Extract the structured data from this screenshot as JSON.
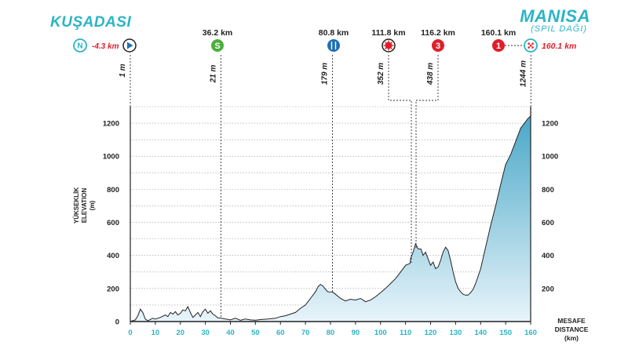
{
  "start_city": "KUŞADASI",
  "finish_city": "MANISA",
  "finish_sub": "(SPIL DAĞI)",
  "colors": {
    "accent": "#2bb5c6",
    "fill_top": "#4aa8c8",
    "fill_bottom": "#e8f4fa",
    "green": "#4caf3a",
    "blue": "#1f6fb5",
    "red": "#e01e2a",
    "line": "#222222"
  },
  "chart_data": {
    "type": "area",
    "title": "",
    "xlabel": "MESAFE DISTANCE (km)",
    "xlabel_lines": [
      "MESAFE",
      "DISTANCE",
      "(km)"
    ],
    "ylabel_lines": [
      "YÜKSEKLİK",
      "ELEVATION",
      "(m)"
    ],
    "xlim": [
      0,
      160
    ],
    "ylim": [
      0,
      1300
    ],
    "x_ticks": [
      0,
      10,
      20,
      30,
      40,
      50,
      60,
      70,
      80,
      90,
      100,
      110,
      120,
      130,
      140,
      150,
      160
    ],
    "y_ticks": [
      0,
      200,
      400,
      600,
      800,
      1000,
      1200
    ],
    "profile": [
      [
        0,
        1
      ],
      [
        2,
        10
      ],
      [
        3,
        35
      ],
      [
        4,
        75
      ],
      [
        5,
        55
      ],
      [
        6,
        15
      ],
      [
        7,
        5
      ],
      [
        9,
        20
      ],
      [
        10,
        15
      ],
      [
        12,
        25
      ],
      [
        14,
        40
      ],
      [
        15,
        30
      ],
      [
        16,
        55
      ],
      [
        17,
        45
      ],
      [
        18,
        60
      ],
      [
        19,
        40
      ],
      [
        20,
        50
      ],
      [
        21,
        70
      ],
      [
        22,
        65
      ],
      [
        23,
        90
      ],
      [
        24,
        55
      ],
      [
        25,
        25
      ],
      [
        26,
        40
      ],
      [
        27,
        55
      ],
      [
        28,
        30
      ],
      [
        29,
        60
      ],
      [
        30,
        75
      ],
      [
        31,
        50
      ],
      [
        32,
        65
      ],
      [
        33,
        45
      ],
      [
        34,
        35
      ],
      [
        35,
        22
      ],
      [
        36.2,
        21
      ],
      [
        38,
        15
      ],
      [
        40,
        10
      ],
      [
        42,
        20
      ],
      [
        44,
        8
      ],
      [
        46,
        15
      ],
      [
        48,
        10
      ],
      [
        50,
        8
      ],
      [
        52,
        12
      ],
      [
        55,
        15
      ],
      [
        58,
        20
      ],
      [
        60,
        30
      ],
      [
        62,
        35
      ],
      [
        64,
        45
      ],
      [
        66,
        55
      ],
      [
        68,
        80
      ],
      [
        70,
        100
      ],
      [
        72,
        140
      ],
      [
        74,
        180
      ],
      [
        75,
        210
      ],
      [
        76,
        225
      ],
      [
        77,
        215
      ],
      [
        78,
        195
      ],
      [
        79,
        180
      ],
      [
        80.8,
        179
      ],
      [
        82,
        165
      ],
      [
        84,
        140
      ],
      [
        86,
        125
      ],
      [
        88,
        135
      ],
      [
        90,
        130
      ],
      [
        92,
        140
      ],
      [
        94,
        120
      ],
      [
        96,
        130
      ],
      [
        98,
        150
      ],
      [
        100,
        175
      ],
      [
        102,
        200
      ],
      [
        104,
        230
      ],
      [
        106,
        260
      ],
      [
        108,
        300
      ],
      [
        110,
        340
      ],
      [
        111.8,
        352
      ],
      [
        112,
        380
      ],
      [
        113,
        420
      ],
      [
        114,
        470
      ],
      [
        115,
        440
      ],
      [
        116.2,
        438
      ],
      [
        117,
        400
      ],
      [
        118,
        420
      ],
      [
        119,
        380
      ],
      [
        120,
        340
      ],
      [
        121,
        360
      ],
      [
        122,
        320
      ],
      [
        123,
        330
      ],
      [
        124,
        370
      ],
      [
        125,
        420
      ],
      [
        126,
        450
      ],
      [
        127,
        430
      ],
      [
        128,
        370
      ],
      [
        129,
        300
      ],
      [
        130,
        240
      ],
      [
        131,
        200
      ],
      [
        132,
        180
      ],
      [
        133,
        165
      ],
      [
        134,
        160
      ],
      [
        135,
        160
      ],
      [
        136,
        175
      ],
      [
        137,
        195
      ],
      [
        138,
        230
      ],
      [
        140,
        320
      ],
      [
        142,
        450
      ],
      [
        144,
        580
      ],
      [
        146,
        700
      ],
      [
        148,
        830
      ],
      [
        150,
        950
      ],
      [
        152,
        1010
      ],
      [
        154,
        1090
      ],
      [
        156,
        1170
      ],
      [
        158,
        1210
      ],
      [
        159,
        1230
      ],
      [
        160.1,
        1244
      ]
    ],
    "markers": [
      {
        "name": "start-neutral",
        "km_label": "-4.3 km",
        "alt": "1 m",
        "x": 0,
        "symbol": "N",
        "kind": "neutral"
      },
      {
        "name": "sprint",
        "km_label": "36.2 km",
        "alt": "21 m",
        "x": 36.2,
        "symbol": "S",
        "kind": "sprint"
      },
      {
        "name": "feed-zone",
        "km_label": "80.8 km",
        "alt": "179 m",
        "x": 80.8,
        "symbol": "feed",
        "kind": "feed"
      },
      {
        "name": "climb-4",
        "km_label": "111.8 km",
        "alt": "352 m",
        "x": 111.8,
        "symbol": "4",
        "kind": "climb4"
      },
      {
        "name": "climb-3",
        "km_label": "116.2 km",
        "alt": "438 m",
        "x": 116.2,
        "symbol": "3",
        "kind": "climb3"
      },
      {
        "name": "climb-1",
        "km_label": "160.1 km",
        "alt": "1244 m",
        "x": 160.1,
        "symbol": "1",
        "kind": "climb1"
      }
    ],
    "finish_label": "160.1 km"
  }
}
